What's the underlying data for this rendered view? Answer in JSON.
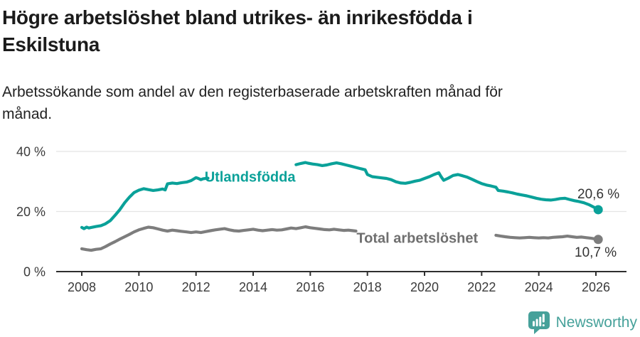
{
  "header": {
    "title_lines": [
      "Högre arbetslöshet bland utrikes- än inrikesfödda i",
      "Eskilstuna"
    ],
    "subtitle_lines": [
      "Arbetssökande som andel av den registerbaserade arbetskraften månad för",
      "månad."
    ]
  },
  "colors": {
    "teal": "#0aa199",
    "gray_line": "#7d7d7d",
    "gray_label": "#6f6f6f",
    "grid": "#e4e4e4",
    "axis": "#2e2e2e",
    "tick_text": "#3b3b3b",
    "value_text": "#333333",
    "logo_teal": "#46a19a"
  },
  "chart_data": {
    "type": "line",
    "title": "Högre arbetslöshet bland utrikes- än inrikesfödda i Eskilstuna",
    "subtitle": "Arbetssökande som andel av den registerbaserade arbetskraften månad för månad.",
    "grid": "horizontal",
    "legend": "inline-labels",
    "x_axis": {
      "ticks": [
        2008,
        2010,
        2012,
        2014,
        2016,
        2018,
        2020,
        2022,
        2024,
        2026
      ],
      "tick_labels": [
        "2008",
        "2010",
        "2012",
        "2014",
        "2016",
        "2018",
        "2020",
        "2022",
        "2024",
        "2026"
      ],
      "range": [
        2007.1,
        2027.05
      ]
    },
    "y_axis": {
      "ticks": [
        0,
        20,
        40
      ],
      "tick_labels": [
        "0 %",
        "20 %",
        "40 %"
      ],
      "range": [
        0,
        45
      ],
      "unit": "%"
    },
    "series": [
      {
        "name": "Utlandsfödda",
        "color": "#0aa199",
        "label_color": "#0aa199",
        "end_label": "20,6 %",
        "last_value": 20.6,
        "label_pos": {
          "year": 2012.3,
          "value": 30.0
        },
        "label_gap_years": [
          2012.45,
          2015.48
        ],
        "points": [
          [
            2008.0,
            14.7
          ],
          [
            2008.08,
            14.3
          ],
          [
            2008.17,
            14.8
          ],
          [
            2008.25,
            14.5
          ],
          [
            2008.33,
            14.7
          ],
          [
            2008.5,
            15.0
          ],
          [
            2008.67,
            15.3
          ],
          [
            2008.83,
            15.9
          ],
          [
            2009.0,
            17.0
          ],
          [
            2009.17,
            18.8
          ],
          [
            2009.33,
            20.6
          ],
          [
            2009.5,
            22.9
          ],
          [
            2009.67,
            24.8
          ],
          [
            2009.83,
            26.3
          ],
          [
            2010.0,
            27.1
          ],
          [
            2010.17,
            27.6
          ],
          [
            2010.33,
            27.3
          ],
          [
            2010.5,
            27.0
          ],
          [
            2010.67,
            27.2
          ],
          [
            2010.83,
            27.5
          ],
          [
            2010.92,
            27.2
          ],
          [
            2011.0,
            29.2
          ],
          [
            2011.17,
            29.5
          ],
          [
            2011.33,
            29.3
          ],
          [
            2011.5,
            29.6
          ],
          [
            2011.67,
            29.8
          ],
          [
            2011.83,
            30.3
          ],
          [
            2012.0,
            31.3
          ],
          [
            2012.08,
            31.0
          ],
          [
            2012.17,
            30.6
          ],
          [
            2012.25,
            30.9
          ],
          [
            2012.42,
            31.1
          ],
          [
            2015.5,
            35.6
          ],
          [
            2015.67,
            36.0
          ],
          [
            2015.83,
            36.3
          ],
          [
            2015.92,
            36.1
          ],
          [
            2016.08,
            35.8
          ],
          [
            2016.25,
            35.6
          ],
          [
            2016.42,
            35.3
          ],
          [
            2016.58,
            35.5
          ],
          [
            2016.75,
            35.9
          ],
          [
            2016.92,
            36.2
          ],
          [
            2017.08,
            35.9
          ],
          [
            2017.25,
            35.5
          ],
          [
            2017.42,
            35.1
          ],
          [
            2017.58,
            34.7
          ],
          [
            2017.75,
            34.3
          ],
          [
            2017.92,
            33.9
          ],
          [
            2018.0,
            32.3
          ],
          [
            2018.17,
            31.6
          ],
          [
            2018.33,
            31.4
          ],
          [
            2018.5,
            31.2
          ],
          [
            2018.67,
            31.0
          ],
          [
            2018.83,
            30.6
          ],
          [
            2019.0,
            29.9
          ],
          [
            2019.17,
            29.5
          ],
          [
            2019.33,
            29.4
          ],
          [
            2019.5,
            29.7
          ],
          [
            2019.67,
            30.1
          ],
          [
            2019.83,
            30.4
          ],
          [
            2020.0,
            31.0
          ],
          [
            2020.17,
            31.6
          ],
          [
            2020.33,
            32.3
          ],
          [
            2020.5,
            32.9
          ],
          [
            2020.58,
            31.6
          ],
          [
            2020.67,
            30.4
          ],
          [
            2020.83,
            31.1
          ],
          [
            2021.0,
            32.0
          ],
          [
            2021.17,
            32.3
          ],
          [
            2021.33,
            31.9
          ],
          [
            2021.5,
            31.4
          ],
          [
            2021.67,
            30.7
          ],
          [
            2021.83,
            30.0
          ],
          [
            2022.0,
            29.3
          ],
          [
            2022.17,
            28.8
          ],
          [
            2022.33,
            28.5
          ],
          [
            2022.5,
            28.1
          ],
          [
            2022.58,
            27.0
          ],
          [
            2022.75,
            26.8
          ],
          [
            2022.92,
            26.5
          ],
          [
            2023.08,
            26.2
          ],
          [
            2023.25,
            25.8
          ],
          [
            2023.42,
            25.5
          ],
          [
            2023.58,
            25.2
          ],
          [
            2023.75,
            24.8
          ],
          [
            2023.92,
            24.4
          ],
          [
            2024.08,
            24.1
          ],
          [
            2024.25,
            23.9
          ],
          [
            2024.42,
            23.8
          ],
          [
            2024.58,
            24.0
          ],
          [
            2024.75,
            24.3
          ],
          [
            2024.92,
            24.4
          ],
          [
            2025.08,
            24.0
          ],
          [
            2025.25,
            23.6
          ],
          [
            2025.42,
            23.3
          ],
          [
            2025.58,
            22.9
          ],
          [
            2025.75,
            22.3
          ],
          [
            2025.92,
            21.5
          ],
          [
            2026.08,
            20.6
          ]
        ]
      },
      {
        "name": "Total arbetslöshet",
        "color": "#7d7d7d",
        "label_color": "#6f6f6f",
        "end_label": "10,7 %",
        "last_value": 10.7,
        "label_pos": {
          "year": 2017.62,
          "value": 9.6
        },
        "label_gap_years": [
          2017.65,
          2022.45
        ],
        "points": [
          [
            2008.0,
            7.6
          ],
          [
            2008.17,
            7.3
          ],
          [
            2008.33,
            7.1
          ],
          [
            2008.5,
            7.4
          ],
          [
            2008.67,
            7.6
          ],
          [
            2008.83,
            8.3
          ],
          [
            2009.0,
            9.2
          ],
          [
            2009.17,
            10.0
          ],
          [
            2009.33,
            10.8
          ],
          [
            2009.5,
            11.6
          ],
          [
            2009.67,
            12.4
          ],
          [
            2009.83,
            13.2
          ],
          [
            2010.0,
            13.9
          ],
          [
            2010.17,
            14.4
          ],
          [
            2010.33,
            14.8
          ],
          [
            2010.5,
            14.6
          ],
          [
            2010.67,
            14.2
          ],
          [
            2010.83,
            13.8
          ],
          [
            2011.0,
            13.5
          ],
          [
            2011.17,
            13.8
          ],
          [
            2011.33,
            13.6
          ],
          [
            2011.5,
            13.4
          ],
          [
            2011.67,
            13.2
          ],
          [
            2011.83,
            13.0
          ],
          [
            2012.0,
            13.2
          ],
          [
            2012.17,
            13.0
          ],
          [
            2012.33,
            13.3
          ],
          [
            2012.5,
            13.6
          ],
          [
            2012.67,
            13.9
          ],
          [
            2012.83,
            14.1
          ],
          [
            2013.0,
            14.3
          ],
          [
            2013.17,
            13.9
          ],
          [
            2013.33,
            13.6
          ],
          [
            2013.5,
            13.5
          ],
          [
            2013.67,
            13.7
          ],
          [
            2013.83,
            13.9
          ],
          [
            2014.0,
            14.1
          ],
          [
            2014.17,
            13.8
          ],
          [
            2014.33,
            13.6
          ],
          [
            2014.5,
            13.8
          ],
          [
            2014.67,
            14.0
          ],
          [
            2014.83,
            13.8
          ],
          [
            2015.0,
            13.9
          ],
          [
            2015.17,
            14.2
          ],
          [
            2015.33,
            14.5
          ],
          [
            2015.5,
            14.3
          ],
          [
            2015.67,
            14.6
          ],
          [
            2015.83,
            14.9
          ],
          [
            2016.0,
            14.6
          ],
          [
            2016.17,
            14.4
          ],
          [
            2016.33,
            14.2
          ],
          [
            2016.5,
            14.0
          ],
          [
            2016.67,
            13.9
          ],
          [
            2016.83,
            14.1
          ],
          [
            2017.0,
            13.9
          ],
          [
            2017.17,
            13.7
          ],
          [
            2017.33,
            13.8
          ],
          [
            2017.5,
            13.6
          ],
          [
            2017.6,
            13.5
          ],
          [
            2022.5,
            12.1
          ],
          [
            2022.67,
            11.8
          ],
          [
            2022.83,
            11.6
          ],
          [
            2023.0,
            11.4
          ],
          [
            2023.17,
            11.3
          ],
          [
            2023.33,
            11.2
          ],
          [
            2023.5,
            11.3
          ],
          [
            2023.67,
            11.4
          ],
          [
            2023.83,
            11.3
          ],
          [
            2024.0,
            11.2
          ],
          [
            2024.17,
            11.3
          ],
          [
            2024.33,
            11.2
          ],
          [
            2024.5,
            11.4
          ],
          [
            2024.67,
            11.5
          ],
          [
            2024.83,
            11.6
          ],
          [
            2025.0,
            11.8
          ],
          [
            2025.17,
            11.6
          ],
          [
            2025.33,
            11.4
          ],
          [
            2025.5,
            11.5
          ],
          [
            2025.67,
            11.3
          ],
          [
            2025.83,
            11.1
          ],
          [
            2026.08,
            10.7
          ]
        ]
      }
    ]
  },
  "footer": {
    "brand": "Newsworthy"
  }
}
